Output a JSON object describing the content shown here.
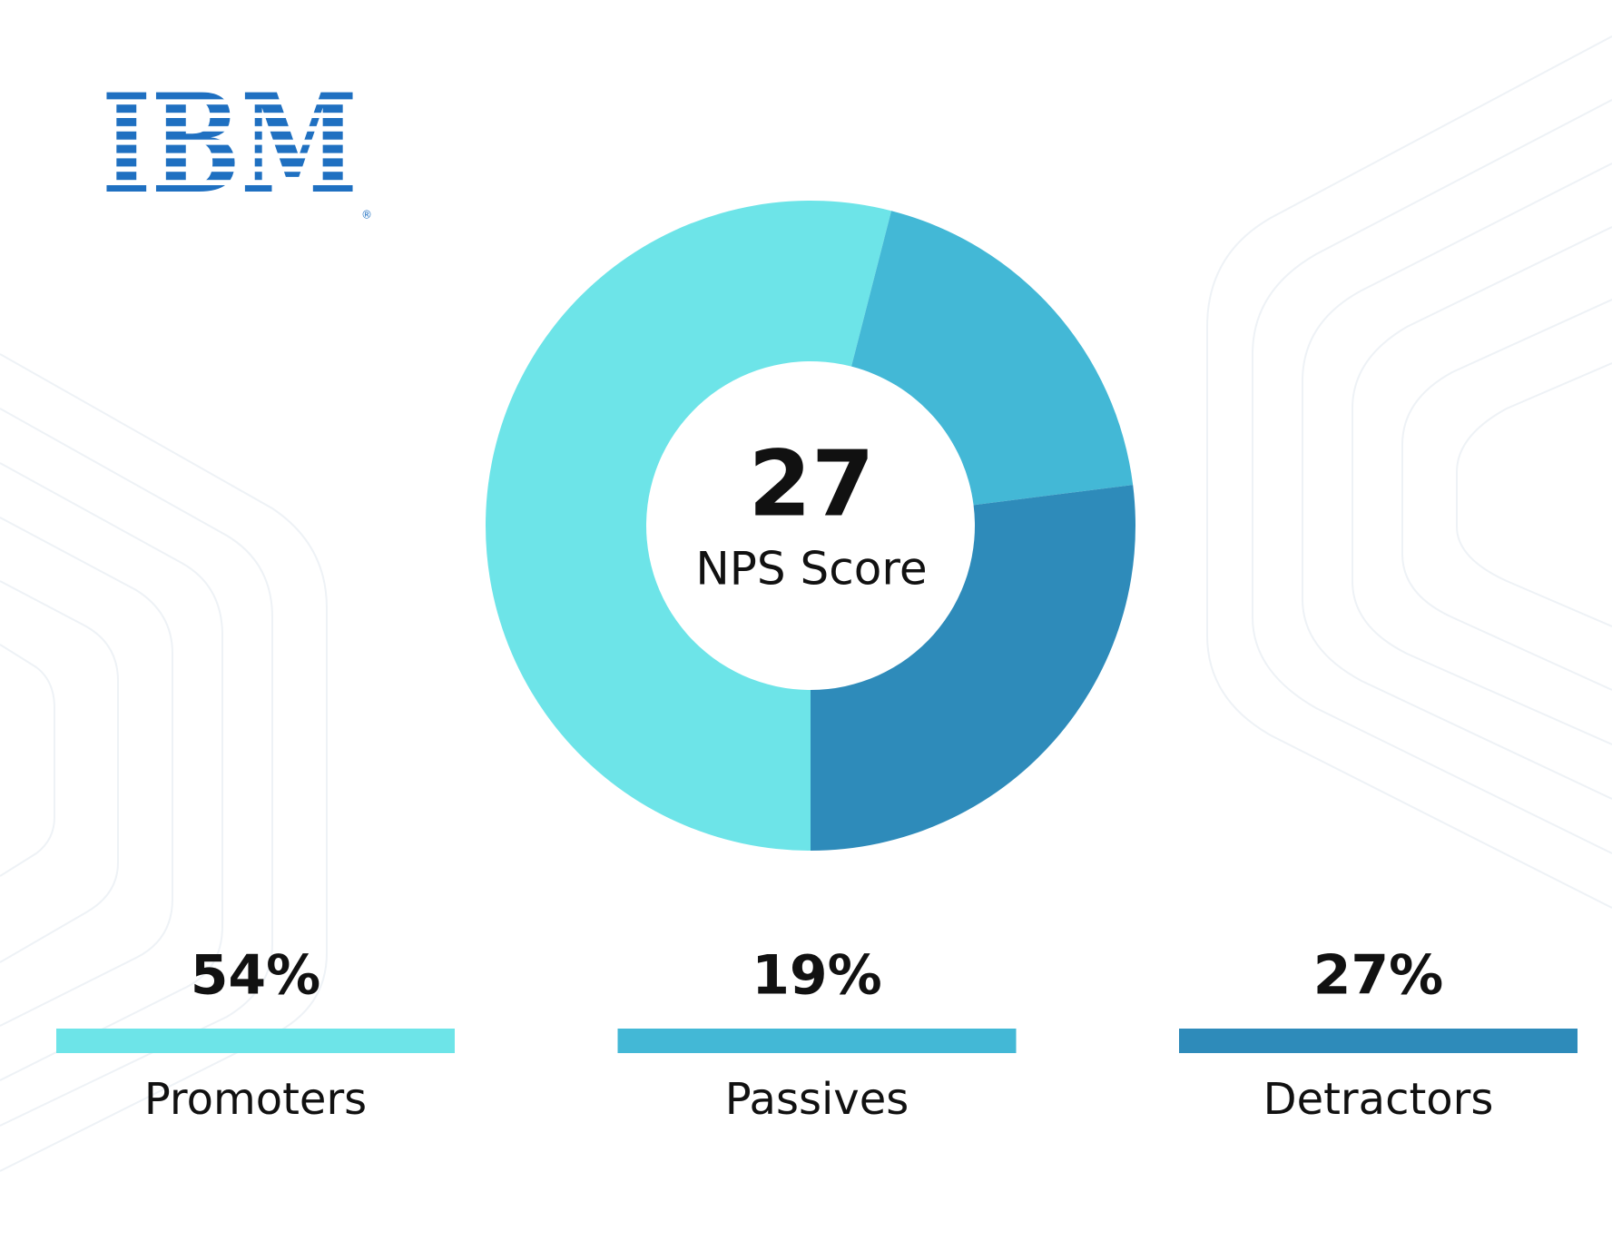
{
  "logo": "IBM",
  "chart_data": {
    "type": "donut",
    "center_value": 27,
    "center_label": "NPS Score",
    "categories": [
      "Promoters",
      "Passives",
      "Detractors"
    ],
    "values": [
      54,
      19,
      27
    ],
    "value_labels": [
      "54%",
      "19%",
      "27%"
    ],
    "colors": [
      "#6de4e8",
      "#43b8d6",
      "#2e8bba"
    ]
  }
}
